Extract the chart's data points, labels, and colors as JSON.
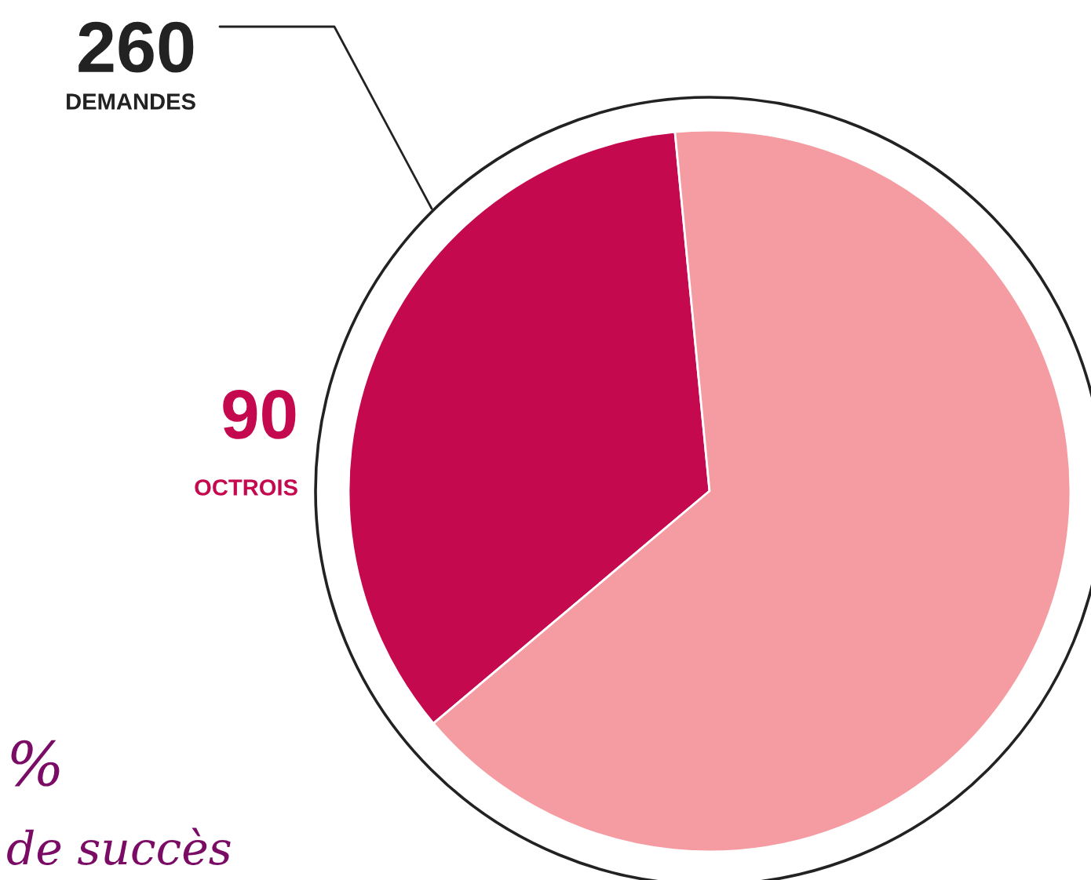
{
  "chart_data": {
    "type": "pie",
    "categories": [
      "OCTROIS",
      null
    ],
    "values": [
      90,
      170
    ],
    "value_labels": [
      "90",
      null
    ],
    "colors": [
      "#c5094f",
      "#f59ca2"
    ],
    "annotations": [
      "260",
      "DEMANDES",
      "%",
      "de succès"
    ]
  }
}
